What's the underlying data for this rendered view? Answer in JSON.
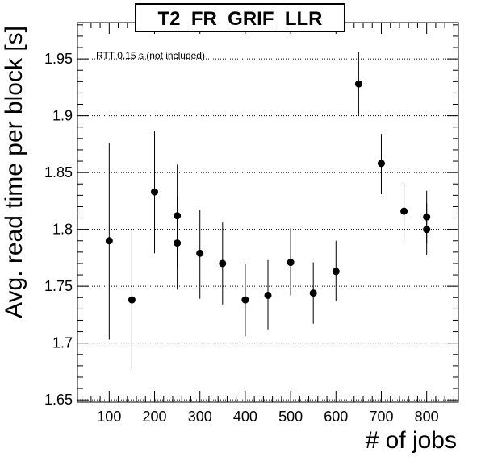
{
  "chart_data": {
    "type": "scatter",
    "title": "T2_FR_GRIF_LLR",
    "xlabel": "# of jobs",
    "ylabel": "Avg. read time per block [s]",
    "annotation": "RTT 0.15 s (not included)",
    "xlim": [
      30,
      870
    ],
    "ylim": [
      1.648,
      1.982
    ],
    "x_ticks": [
      100,
      200,
      300,
      400,
      500,
      600,
      700,
      800
    ],
    "x_tick_labels": [
      "100",
      "200",
      "300",
      "400",
      "500",
      "600",
      "700",
      "800"
    ],
    "y_ticks": [
      1.65,
      1.7,
      1.75,
      1.8,
      1.85,
      1.9,
      1.95
    ],
    "y_tick_labels": [
      "1.65",
      "1.7",
      "1.75",
      "1.8",
      "1.85",
      "1.9",
      "1.95"
    ],
    "grid": "horizontal dotted",
    "marker_color": "#000000",
    "points": [
      {
        "x": 100,
        "y": 1.79,
        "y_low": 1.703,
        "y_high": 1.876
      },
      {
        "x": 150,
        "y": 1.738,
        "y_low": 1.676,
        "y_high": 1.8
      },
      {
        "x": 200,
        "y": 1.833,
        "y_low": 1.779,
        "y_high": 1.887
      },
      {
        "x": 250,
        "y": 1.812,
        "y_low": 1.767,
        "y_high": 1.857
      },
      {
        "x": 250,
        "y": 1.788,
        "y_low": 1.747,
        "y_high": 1.829
      },
      {
        "x": 300,
        "y": 1.779,
        "y_low": 1.739,
        "y_high": 1.817
      },
      {
        "x": 350,
        "y": 1.77,
        "y_low": 1.734,
        "y_high": 1.806
      },
      {
        "x": 400,
        "y": 1.738,
        "y_low": 1.706,
        "y_high": 1.77
      },
      {
        "x": 450,
        "y": 1.742,
        "y_low": 1.712,
        "y_high": 1.773
      },
      {
        "x": 500,
        "y": 1.771,
        "y_low": 1.742,
        "y_high": 1.801
      },
      {
        "x": 550,
        "y": 1.744,
        "y_low": 1.717,
        "y_high": 1.771
      },
      {
        "x": 600,
        "y": 1.763,
        "y_low": 1.737,
        "y_high": 1.79
      },
      {
        "x": 650,
        "y": 1.928,
        "y_low": 1.9,
        "y_high": 1.956
      },
      {
        "x": 700,
        "y": 1.858,
        "y_low": 1.831,
        "y_high": 1.884
      },
      {
        "x": 750,
        "y": 1.816,
        "y_low": 1.791,
        "y_high": 1.841
      },
      {
        "x": 800,
        "y": 1.811,
        "y_low": 1.788,
        "y_high": 1.834
      },
      {
        "x": 800,
        "y": 1.8,
        "y_low": 1.777,
        "y_high": 1.823
      }
    ]
  }
}
